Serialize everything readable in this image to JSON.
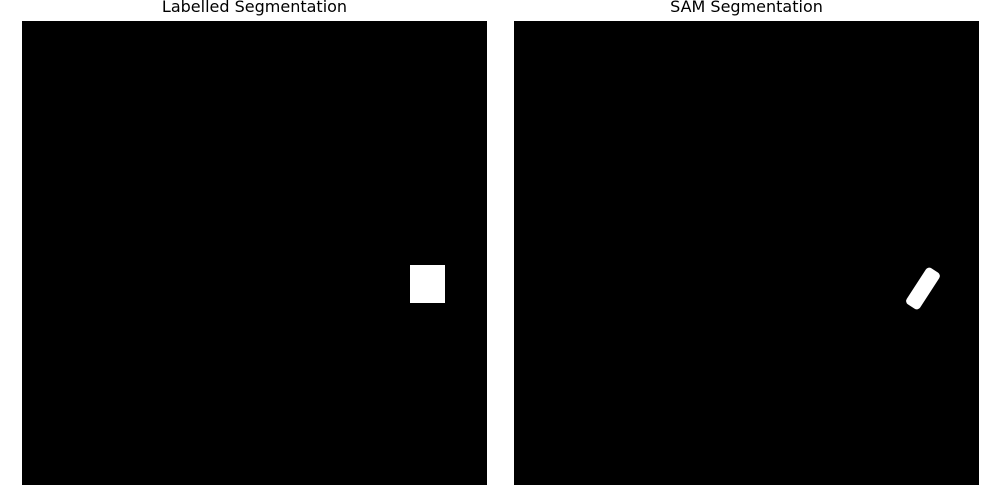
{
  "panels": [
    {
      "title": "Labelled Segmentation",
      "mask": "white rectangle",
      "background_color": "#000000",
      "mask_color": "#ffffff"
    },
    {
      "title": "SAM Segmentation",
      "mask": "white rotated rounded rectangle",
      "background_color": "#000000",
      "mask_color": "#ffffff"
    }
  ]
}
